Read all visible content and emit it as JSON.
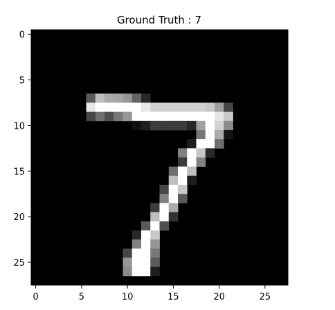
{
  "chart_data": {
    "type": "heatmap",
    "title": "Ground Truth : 7",
    "colormap": "gray",
    "rows": 28,
    "cols": 28,
    "xlim": [
      -0.5,
      27.5
    ],
    "ylim": [
      27.5,
      -0.5
    ],
    "x_ticks": [
      0,
      5,
      10,
      15,
      20,
      25
    ],
    "y_ticks": [
      0,
      5,
      10,
      15,
      20,
      25
    ],
    "x_tick_labels": [
      "0",
      "5",
      "10",
      "15",
      "20",
      "25"
    ],
    "y_tick_labels": [
      "0",
      "5",
      "10",
      "15",
      "20",
      "25"
    ],
    "value_range": [
      0,
      255
    ],
    "nonzero_pixels": [
      [
        7,
        6,
        90
      ],
      [
        7,
        7,
        190
      ],
      [
        7,
        8,
        170
      ],
      [
        7,
        9,
        165
      ],
      [
        7,
        10,
        150
      ],
      [
        7,
        11,
        100
      ],
      [
        7,
        12,
        40
      ],
      [
        8,
        6,
        230
      ],
      [
        8,
        7,
        255
      ],
      [
        8,
        8,
        255
      ],
      [
        8,
        9,
        255
      ],
      [
        8,
        10,
        255
      ],
      [
        8,
        11,
        255
      ],
      [
        8,
        12,
        230
      ],
      [
        8,
        13,
        210
      ],
      [
        8,
        14,
        210
      ],
      [
        8,
        15,
        210
      ],
      [
        8,
        16,
        210
      ],
      [
        8,
        17,
        210
      ],
      [
        8,
        18,
        210
      ],
      [
        8,
        19,
        200
      ],
      [
        8,
        20,
        160
      ],
      [
        8,
        21,
        70
      ],
      [
        9,
        6,
        70
      ],
      [
        9,
        7,
        110
      ],
      [
        9,
        8,
        80
      ],
      [
        9,
        9,
        120
      ],
      [
        9,
        10,
        150
      ],
      [
        9,
        11,
        255
      ],
      [
        9,
        12,
        255
      ],
      [
        9,
        13,
        255
      ],
      [
        9,
        14,
        255
      ],
      [
        9,
        15,
        255
      ],
      [
        9,
        16,
        255
      ],
      [
        9,
        17,
        255
      ],
      [
        9,
        18,
        255
      ],
      [
        9,
        19,
        255
      ],
      [
        9,
        20,
        230
      ],
      [
        9,
        21,
        200
      ],
      [
        10,
        11,
        15
      ],
      [
        10,
        12,
        30
      ],
      [
        10,
        13,
        60
      ],
      [
        10,
        14,
        60
      ],
      [
        10,
        15,
        60
      ],
      [
        10,
        16,
        60
      ],
      [
        10,
        17,
        40
      ],
      [
        10,
        18,
        160
      ],
      [
        10,
        19,
        255
      ],
      [
        10,
        20,
        210
      ],
      [
        10,
        21,
        140
      ],
      [
        11,
        18,
        120
      ],
      [
        11,
        19,
        255
      ],
      [
        11,
        20,
        170
      ],
      [
        11,
        21,
        20
      ],
      [
        12,
        17,
        30
      ],
      [
        12,
        18,
        255
      ],
      [
        12,
        19,
        255
      ],
      [
        12,
        20,
        110
      ],
      [
        13,
        16,
        130
      ],
      [
        13,
        17,
        255
      ],
      [
        13,
        18,
        200
      ],
      [
        13,
        19,
        40
      ],
      [
        14,
        16,
        60
      ],
      [
        14,
        17,
        255
      ],
      [
        14,
        18,
        130
      ],
      [
        15,
        15,
        110
      ],
      [
        15,
        16,
        255
      ],
      [
        15,
        17,
        190
      ],
      [
        16,
        15,
        190
      ],
      [
        16,
        16,
        255
      ],
      [
        16,
        17,
        30
      ],
      [
        17,
        14,
        70
      ],
      [
        17,
        15,
        255
      ],
      [
        17,
        16,
        200
      ],
      [
        18,
        14,
        130
      ],
      [
        18,
        15,
        255
      ],
      [
        18,
        16,
        90
      ],
      [
        19,
        13,
        60
      ],
      [
        19,
        14,
        255
      ],
      [
        19,
        15,
        170
      ],
      [
        20,
        13,
        190
      ],
      [
        20,
        14,
        255
      ],
      [
        20,
        15,
        50
      ],
      [
        21,
        12,
        90
      ],
      [
        21,
        13,
        255
      ],
      [
        21,
        14,
        80
      ],
      [
        22,
        11,
        40
      ],
      [
        22,
        12,
        255
      ],
      [
        22,
        13,
        200
      ],
      [
        23,
        11,
        130
      ],
      [
        23,
        12,
        255
      ],
      [
        23,
        13,
        150
      ],
      [
        24,
        10,
        70
      ],
      [
        24,
        11,
        255
      ],
      [
        24,
        12,
        255
      ],
      [
        24,
        13,
        120
      ],
      [
        25,
        10,
        150
      ],
      [
        25,
        11,
        255
      ],
      [
        25,
        12,
        255
      ],
      [
        25,
        13,
        90
      ],
      [
        26,
        10,
        140
      ],
      [
        26,
        11,
        255
      ],
      [
        26,
        12,
        255
      ],
      [
        26,
        13,
        30
      ]
    ]
  }
}
